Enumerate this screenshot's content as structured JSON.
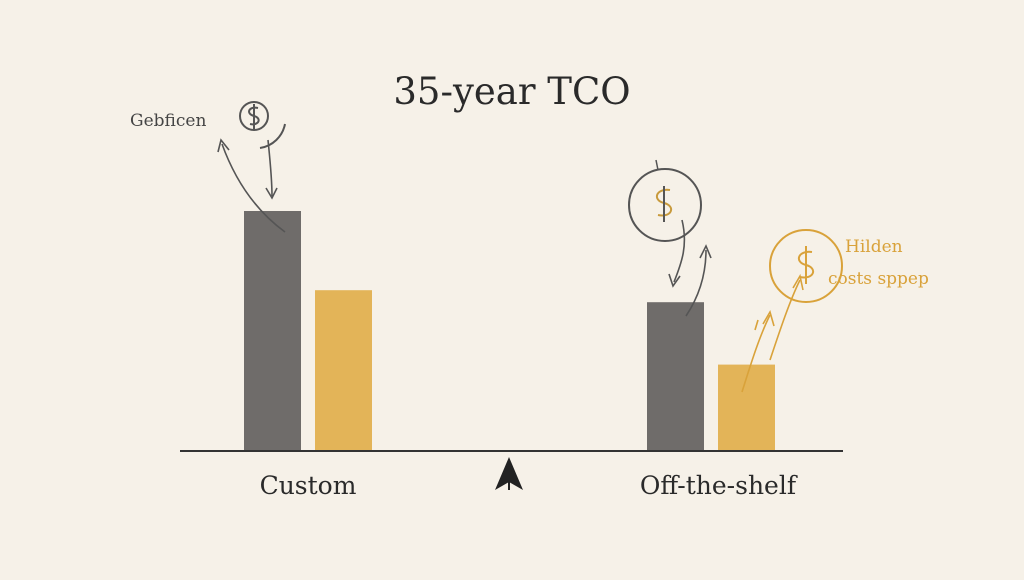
{
  "chart_data": {
    "type": "bar",
    "title": "35-year TCO",
    "categories": [
      "Custom",
      "Off-the-shelf"
    ],
    "series": [
      {
        "values": [
          100,
          62
        ]
      },
      {
        "values": [
          67,
          36
        ]
      }
    ],
    "colors": [
      "#6f6c6a",
      "#e3b458"
    ],
    "axis_color": "#333333",
    "annotations": [
      {
        "text": "Gebficen",
        "color": "#444444",
        "icon": "coin-icon"
      },
      {
        "text": "Hilden",
        "color": "#d9a23a",
        "icon": "dollar-coin-icon"
      },
      {
        "text": "costs sppep",
        "color": "#d9a23a"
      }
    ],
    "balance_indicator": "arrow-up-icon",
    "grid": false,
    "legend": "none"
  }
}
